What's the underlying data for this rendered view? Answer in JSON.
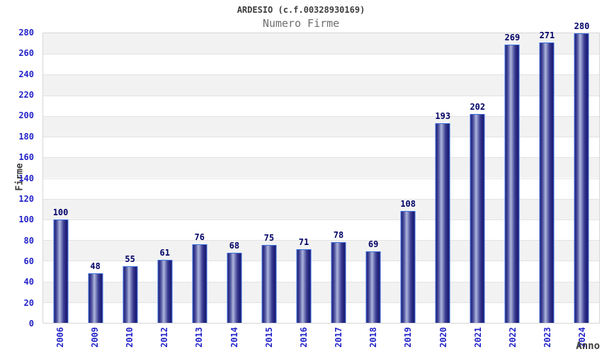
{
  "header": {
    "title": "ARDESIO (c.f.00328930169)",
    "subtitle": "Numero Firme"
  },
  "colors": {
    "background": "#ffffff",
    "title_text": "#3d3d3d",
    "subtitle_text": "#6e6e6e",
    "tick_label_blue": "#2323c8",
    "value_label_navy": "#000066",
    "axis_title_text": "#3d3d3d",
    "bar_border_blue": "#3b6fdc",
    "bar_dark_navy": "#23237b",
    "bar_highlight": "#b0b6dd",
    "band_gray": "#f2f2f2",
    "band_white": "#ffffff",
    "gridline_gray": "#e3e3e3",
    "plot_border_gray": "#d6d6d6"
  },
  "chart_data": {
    "type": "bar",
    "title": "ARDESIO (c.f.00328930169)",
    "subtitle": "Numero Firme",
    "xlabel": "Anno",
    "ylabel": "Firme",
    "categories": [
      "2006",
      "2009",
      "2010",
      "2012",
      "2013",
      "2014",
      "2015",
      "2016",
      "2017",
      "2018",
      "2019",
      "2020",
      "2021",
      "2022",
      "2023",
      "2024"
    ],
    "values": [
      100,
      48,
      55,
      61,
      76,
      68,
      75,
      71,
      78,
      69,
      108,
      193,
      202,
      269,
      271,
      280
    ],
    "ylim": [
      0,
      280
    ],
    "ytick_step": 20,
    "ytick_labels": [
      "0",
      "20",
      "40",
      "60",
      "80",
      "100",
      "120",
      "140",
      "160",
      "180",
      "200",
      "220",
      "240",
      "260",
      "280"
    ],
    "grid": true,
    "legend_position": "none",
    "band_pattern": "alternating gray/white every 20 units, gray at top (260-280)",
    "x_tick_rotation": "vertical bottom-to-top",
    "value_labels_shown": true
  }
}
